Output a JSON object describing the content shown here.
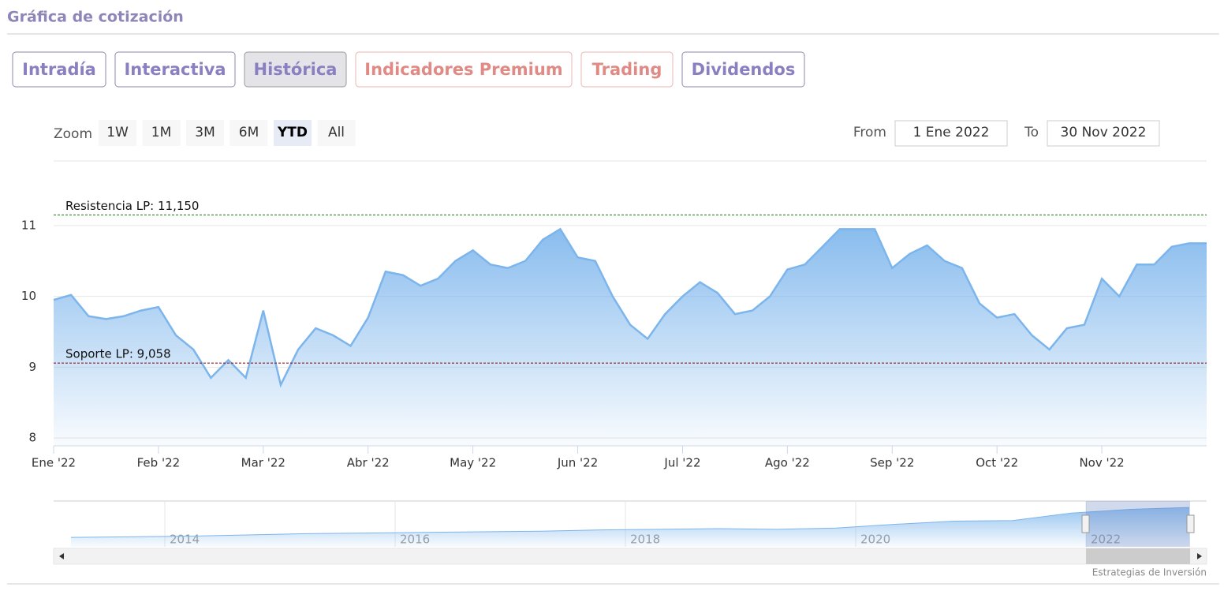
{
  "header": {
    "title": "Gráfica de cotización"
  },
  "tabs": [
    "Intradía",
    "Interactiva",
    "Histórica",
    "Indicadores Premium",
    "Trading",
    "Dividendos"
  ],
  "selected_tab": "Histórica",
  "zoom": {
    "label": "Zoom",
    "buttons": [
      "1W",
      "1M",
      "3M",
      "6M",
      "YTD",
      "All"
    ],
    "selected": "YTD"
  },
  "range": {
    "from_label": "From",
    "from": "1 Ene 2022",
    "to_label": "To",
    "to": "30 Nov 2022"
  },
  "chart_data": {
    "type": "area",
    "color": "#7cb5ec",
    "categories": [
      "Ene '22",
      null,
      null,
      null,
      null,
      null,
      "Feb '22",
      null,
      null,
      null,
      null,
      null,
      "Mar '22",
      null,
      null,
      null,
      null,
      null,
      "Abr '22",
      null,
      null,
      null,
      null,
      null,
      "May '22",
      null,
      null,
      null,
      null,
      null,
      "Jun '22",
      null,
      null,
      null,
      null,
      null,
      "Jul '22",
      null,
      null,
      null,
      null,
      null,
      "Ago '22",
      null,
      null,
      null,
      null,
      null,
      "Sep '22",
      null,
      null,
      null,
      null,
      null,
      "Oct '22",
      null,
      null,
      null,
      null,
      null,
      "Nov '22",
      null,
      null,
      null,
      null,
      null,
      null
    ],
    "values": [
      9.95,
      10.02,
      9.72,
      9.68,
      9.72,
      9.8,
      9.85,
      9.45,
      9.25,
      8.85,
      9.1,
      8.85,
      9.8,
      8.75,
      9.25,
      9.55,
      9.45,
      9.3,
      9.7,
      10.35,
      10.3,
      10.15,
      10.25,
      10.5,
      10.65,
      10.45,
      10.4,
      10.5,
      10.8,
      10.95,
      10.55,
      10.5,
      10.0,
      9.6,
      9.4,
      9.75,
      10.0,
      10.2,
      10.05,
      9.75,
      9.8,
      10.0,
      10.38,
      10.45,
      10.7,
      10.95,
      10.95,
      10.95,
      10.4,
      10.6,
      10.72,
      10.5,
      10.4,
      9.9,
      9.7,
      9.75,
      9.45,
      9.25,
      9.55,
      9.6,
      10.25,
      10.0,
      10.45,
      10.45,
      10.7,
      10.75,
      10.75
    ],
    "ylim": [
      7.89,
      11.4
    ],
    "yticks": [
      8,
      9,
      10,
      11
    ],
    "grid": true,
    "plot_lines": [
      {
        "value": 11.15,
        "label": "Resistencia LP: 11,150",
        "color": "#2a8a2a"
      },
      {
        "value": 9.058,
        "label": "Soporte LP: 9,058",
        "color": "#8b1a1a"
      }
    ]
  },
  "navigator": {
    "labels": [
      "2014",
      "2016",
      "2018",
      "2020",
      "2022"
    ],
    "values": [
      5.5,
      5.6,
      5.7,
      5.9,
      6.1,
      6.2,
      6.3,
      6.4,
      6.5,
      6.7,
      6.8,
      6.9,
      6.8,
      7.0,
      7.6,
      8.1,
      8.2,
      9.4,
      10.0,
      10.3
    ],
    "ylim": [
      4,
      11.2
    ]
  },
  "credits": "Estrategias de Inversión"
}
